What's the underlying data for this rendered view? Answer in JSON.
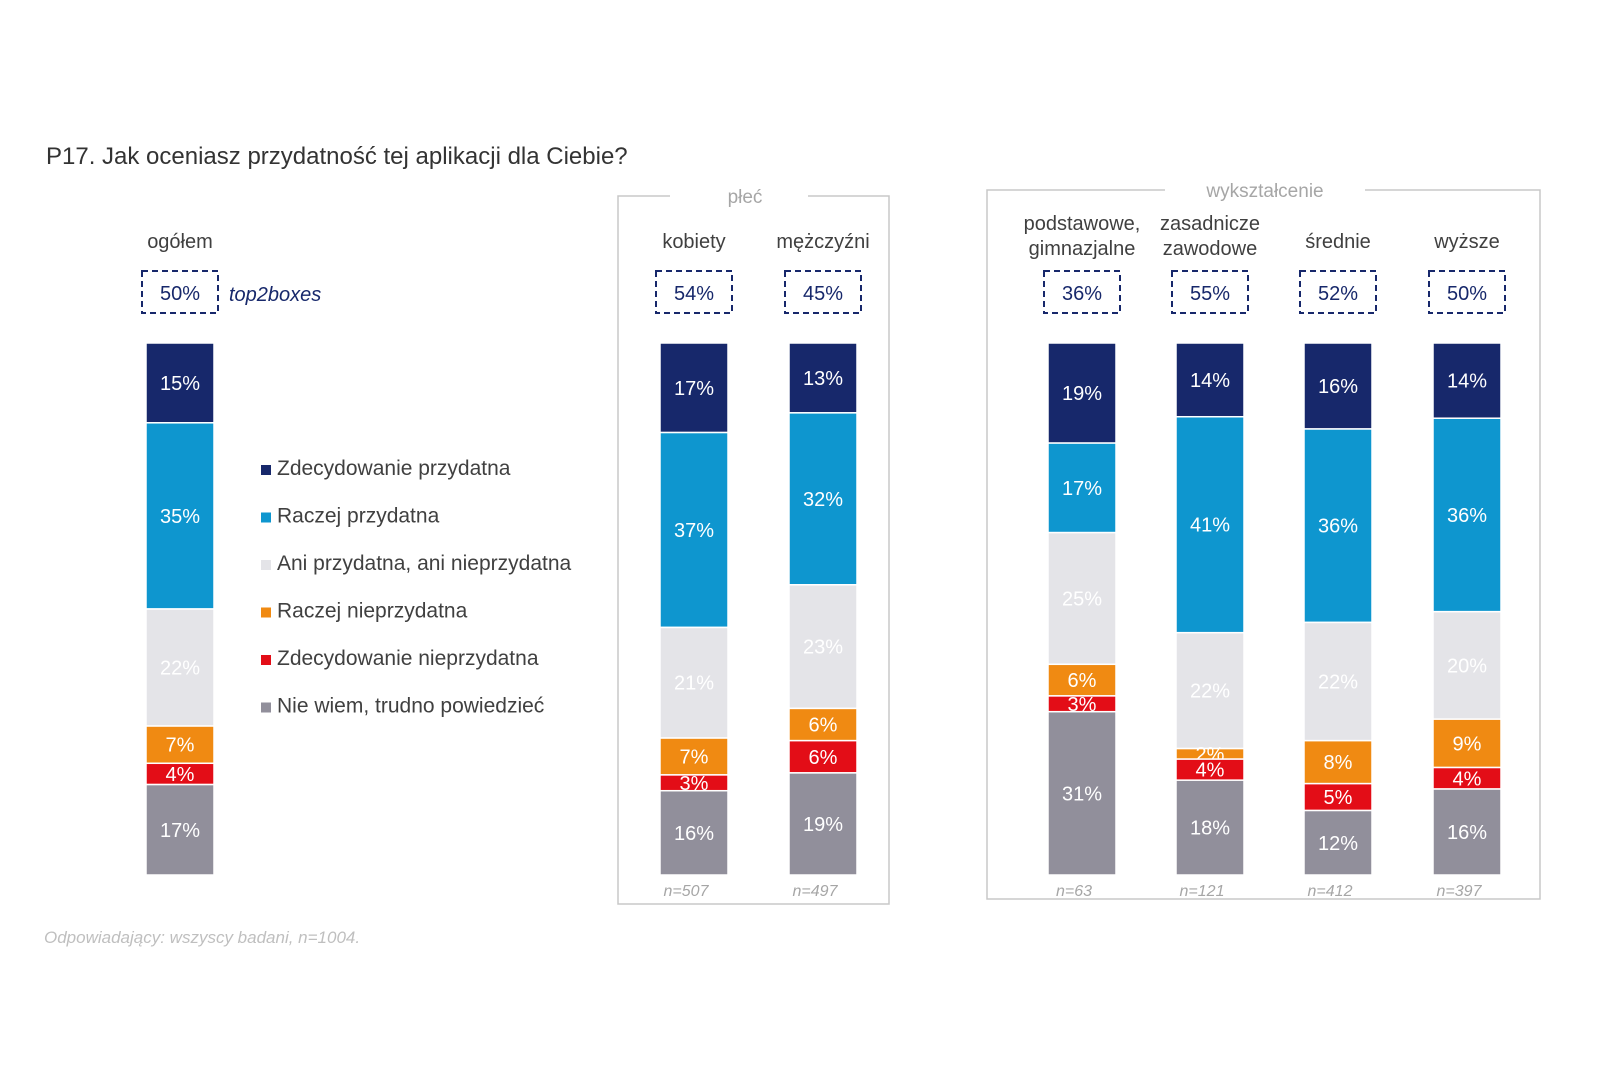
{
  "title": "P17. Jak oceniasz przydatność tej aplikacji dla Ciebie?",
  "footnote": "Odpowiadający: wszyscy badani, n=1004.",
  "top2_label": "top2boxes",
  "group_labels": {
    "gender": "płeć",
    "education": "wykształcenie"
  },
  "colors": {
    "Zdecydowanie przydatna": "#17286b",
    "Raczej przydatna": "#0e96cf",
    "Ani przydatna, ani nieprzydatna": "#e4e4e8",
    "Raczej nieprzydatna": "#f08a12",
    "Zdecydowanie nieprzydatna": "#e30d17",
    "Nie wiem, trudno powiedzieć": "#918f9b"
  },
  "chart_data": {
    "type": "bar",
    "stacked": true,
    "orientation": "vertical",
    "title": "P17. Jak oceniasz przydatność tej aplikacji dla Ciebie?",
    "categories": [
      [
        "ogółem"
      ],
      [
        "kobiety"
      ],
      [
        "mężczyźni"
      ],
      [
        "podstawowe,",
        "gimnazjalne"
      ],
      [
        "zasadnicze",
        "zawodowe"
      ],
      [
        "średnie"
      ],
      [
        "wyższe"
      ]
    ],
    "top2boxes": [
      "50%",
      "54%",
      "45%",
      "36%",
      "55%",
      "52%",
      "50%"
    ],
    "n": [
      "",
      "n=507",
      "n=497",
      "n=63",
      "n=121",
      "n=412",
      "n=397"
    ],
    "series": [
      {
        "name": "Zdecydowanie przydatna",
        "values": [
          15,
          17,
          13,
          19,
          14,
          16,
          14
        ]
      },
      {
        "name": "Raczej przydatna",
        "values": [
          35,
          37,
          32,
          17,
          41,
          36,
          36
        ]
      },
      {
        "name": "Ani przydatna, ani nieprzydatna",
        "values": [
          22,
          21,
          23,
          25,
          22,
          22,
          20
        ]
      },
      {
        "name": "Raczej nieprzydatna",
        "values": [
          7,
          7,
          6,
          6,
          2,
          8,
          9
        ]
      },
      {
        "name": "Zdecydowanie nieprzydatna",
        "values": [
          4,
          3,
          6,
          3,
          4,
          5,
          4
        ]
      },
      {
        "name": "Nie wiem, trudno powiedzieć",
        "values": [
          17,
          16,
          19,
          31,
          18,
          12,
          16
        ]
      }
    ],
    "legend": [
      "Zdecydowanie przydatna",
      "Raczej przydatna",
      "Ani przydatna, ani nieprzydatna",
      "Raczej nieprzydatna",
      "Zdecydowanie nieprzydatna",
      "Nie wiem, trudno powiedzieć"
    ],
    "groups": [
      {
        "label": "płeć",
        "members": [
          1,
          2
        ]
      },
      {
        "label": "wykształcenie",
        "members": [
          3,
          4,
          5,
          6
        ]
      }
    ]
  }
}
